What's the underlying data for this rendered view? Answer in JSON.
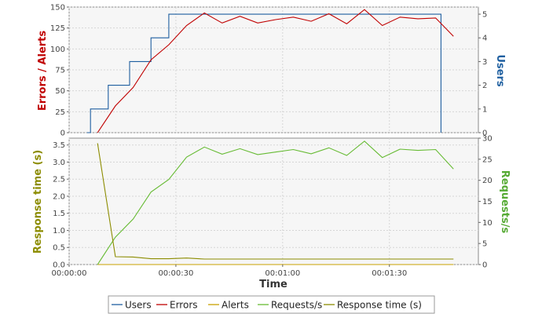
{
  "chart_data": [
    {
      "type": "line",
      "panel": "top",
      "left_axis": {
        "label": "Errors / Alerts",
        "color": "#c00000",
        "ylim": [
          0,
          150
        ],
        "ticks": [
          0,
          25,
          50,
          75,
          100,
          125,
          150
        ]
      },
      "right_axis": {
        "label": "Users",
        "color": "#1f5fa0",
        "ylim": [
          0,
          5.3
        ],
        "ticks": [
          0,
          1,
          2,
          3,
          4,
          5
        ]
      },
      "grid": true,
      "series": [
        {
          "name": "Users",
          "color": "#1f5fa0",
          "axis": "right",
          "step": true,
          "x": [
            5,
            6,
            11,
            17,
            23,
            28,
            33,
            38,
            43,
            48,
            53,
            58,
            63,
            68,
            73,
            78,
            83,
            88,
            93,
            98,
            104.5,
            104.5
          ],
          "values": [
            0,
            1,
            2,
            3,
            4,
            5,
            5,
            5,
            5,
            5,
            5,
            5,
            5,
            5,
            5,
            5,
            5,
            5,
            5,
            5,
            5,
            0
          ]
        },
        {
          "name": "Errors",
          "color": "#c00000",
          "axis": "left",
          "x": [
            8,
            13,
            18,
            23,
            28,
            33,
            38,
            43,
            48,
            53,
            58,
            63,
            68,
            73,
            78,
            83,
            88,
            93,
            98,
            103,
            108
          ],
          "values": [
            0,
            32,
            54,
            87,
            105,
            128,
            143,
            131,
            139,
            131,
            135,
            138,
            133,
            142,
            130,
            147,
            128,
            138,
            136,
            137,
            115
          ]
        }
      ]
    },
    {
      "type": "line",
      "panel": "bottom",
      "left_axis": {
        "label": "Response time (s)",
        "color": "#8c8c00",
        "ylim": [
          0,
          3.7
        ],
        "ticks": [
          "0.0",
          "0.5",
          "1.0",
          "1.5",
          "2.0",
          "2.5",
          "3.0",
          "3.5"
        ]
      },
      "right_axis": {
        "label": "Requests/s",
        "color": "#55aa33",
        "ylim": [
          0,
          30
        ],
        "ticks": [
          0,
          5,
          10,
          15,
          20,
          25,
          30
        ]
      },
      "xlabel": "Time",
      "xlim": [
        0,
        115
      ],
      "x_ticks": [
        {
          "value": 0,
          "label": "00:00:00"
        },
        {
          "value": 30,
          "label": "00:00:30"
        },
        {
          "value": 60,
          "label": "00:01:00"
        },
        {
          "value": 90,
          "label": "00:01:30"
        }
      ],
      "grid": true,
      "series": [
        {
          "name": "Alerts",
          "color": "#c8a000",
          "axis": "left",
          "x": [
            8,
            108
          ],
          "values": [
            0,
            0
          ]
        },
        {
          "name": "Requests/s",
          "color": "#66bb33",
          "axis": "right",
          "x": [
            8,
            13,
            18,
            23,
            28,
            33,
            38,
            43,
            48,
            53,
            58,
            63,
            68,
            73,
            78,
            83,
            88,
            93,
            98,
            103,
            108
          ],
          "values": [
            0,
            6.5,
            10.8,
            17.2,
            20.2,
            25.5,
            27.9,
            26.2,
            27.5,
            26.1,
            26.7,
            27.3,
            26.3,
            27.7,
            25.9,
            29.3,
            25.4,
            27.4,
            27.1,
            27.3,
            22.7
          ]
        },
        {
          "name": "Response time (s)",
          "color": "#8c8c00",
          "axis": "left",
          "x": [
            8,
            13,
            18,
            23,
            28,
            33,
            38,
            43,
            48,
            53,
            58,
            63,
            68,
            73,
            78,
            83,
            88,
            93,
            98,
            103,
            108
          ],
          "values": [
            3.55,
            0.23,
            0.22,
            0.17,
            0.17,
            0.19,
            0.16,
            0.16,
            0.16,
            0.16,
            0.16,
            0.16,
            0.16,
            0.16,
            0.16,
            0.16,
            0.16,
            0.16,
            0.16,
            0.16,
            0.16
          ]
        }
      ]
    }
  ],
  "legend": {
    "position": "bottom",
    "items": [
      {
        "label": "Users",
        "color": "#1f5fa0"
      },
      {
        "label": "Errors",
        "color": "#c00000"
      },
      {
        "label": "Alerts",
        "color": "#c8a000"
      },
      {
        "label": "Requests/s",
        "color": "#66bb33"
      },
      {
        "label": "Response time (s)",
        "color": "#8c8c00"
      }
    ]
  }
}
